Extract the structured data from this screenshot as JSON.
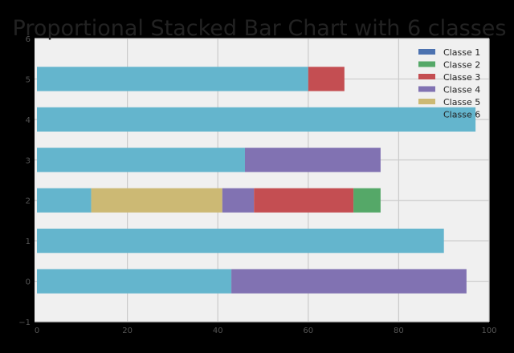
{
  "chart_data": {
    "type": "bar",
    "orientation": "horizontal",
    "stacked": true,
    "title": "Proportional Stacked Bar Chart with 6 classes",
    "xlabel": "",
    "ylabel": "",
    "xlim": [
      0,
      100
    ],
    "ylim": [
      -1,
      6
    ],
    "xticks": [
      "0",
      "20",
      "40",
      "60",
      "80",
      "100"
    ],
    "yticks": [
      "−1",
      "0",
      "1",
      "2",
      "3",
      "4",
      "5",
      "6"
    ],
    "grid": true,
    "legend_position": "top-right",
    "categories": [
      0,
      1,
      2,
      3,
      4,
      5
    ],
    "series": [
      {
        "name": "Classe 6",
        "color": "#64b5cd",
        "values": [
          43,
          90,
          12,
          46,
          97,
          60
        ]
      },
      {
        "name": "Classe 5",
        "color": "#ccb974",
        "values": [
          0,
          0,
          29,
          0,
          0,
          0
        ]
      },
      {
        "name": "Classe 4",
        "color": "#8172b2",
        "values": [
          52,
          0,
          7,
          30,
          0,
          0
        ]
      },
      {
        "name": "Classe 3",
        "color": "#c44e52",
        "values": [
          0,
          0,
          22,
          0,
          0,
          8
        ]
      },
      {
        "name": "Classe 2",
        "color": "#55a868",
        "values": [
          0,
          0,
          6,
          0,
          0,
          0
        ]
      },
      {
        "name": "Classe 1",
        "color": "#4c72b0",
        "values": [
          0,
          0,
          0,
          0,
          0,
          0
        ]
      }
    ],
    "legend_order": [
      "Classe 1",
      "Classe 2",
      "Classe 3",
      "Classe 4",
      "Classe 5",
      "Classe 6"
    ]
  }
}
